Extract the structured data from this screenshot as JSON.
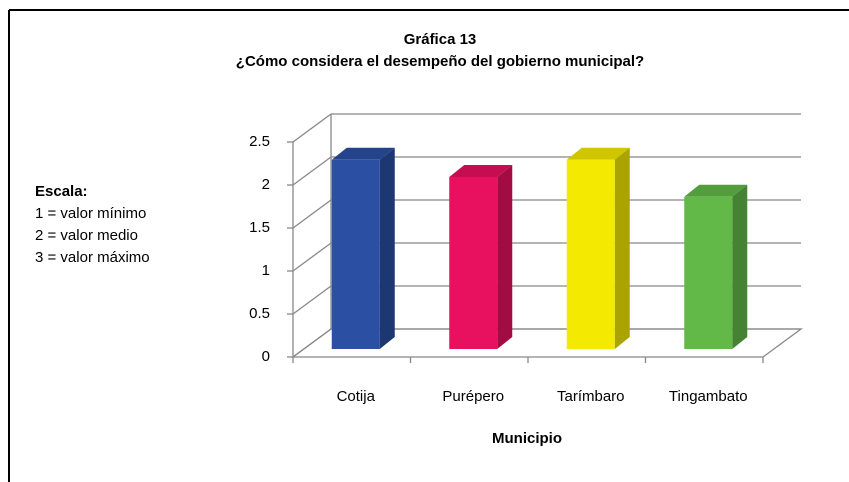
{
  "chart_data": {
    "type": "bar3d",
    "title": "Gráfica 13",
    "subtitle": "¿Cómo considera el desempeño del gobierno municipal?",
    "x_label": "Municipio",
    "annotations": [
      "Escala:",
      "1 = valor mínimo",
      "2 = valor medio",
      "3 = valor máximo"
    ],
    "categories": [
      "Cotija",
      "Purépero",
      "Tarímbaro",
      "Tingambato"
    ],
    "values": [
      2.2,
      2.0,
      2.2,
      1.77
    ],
    "colors": [
      "#2a4fa3",
      "#e8115f",
      "#f4e900",
      "#62b947"
    ],
    "ylim": [
      0,
      2.5
    ],
    "yticks": [
      0,
      0.5,
      1,
      1.5,
      2,
      2.5
    ],
    "grid": true
  }
}
